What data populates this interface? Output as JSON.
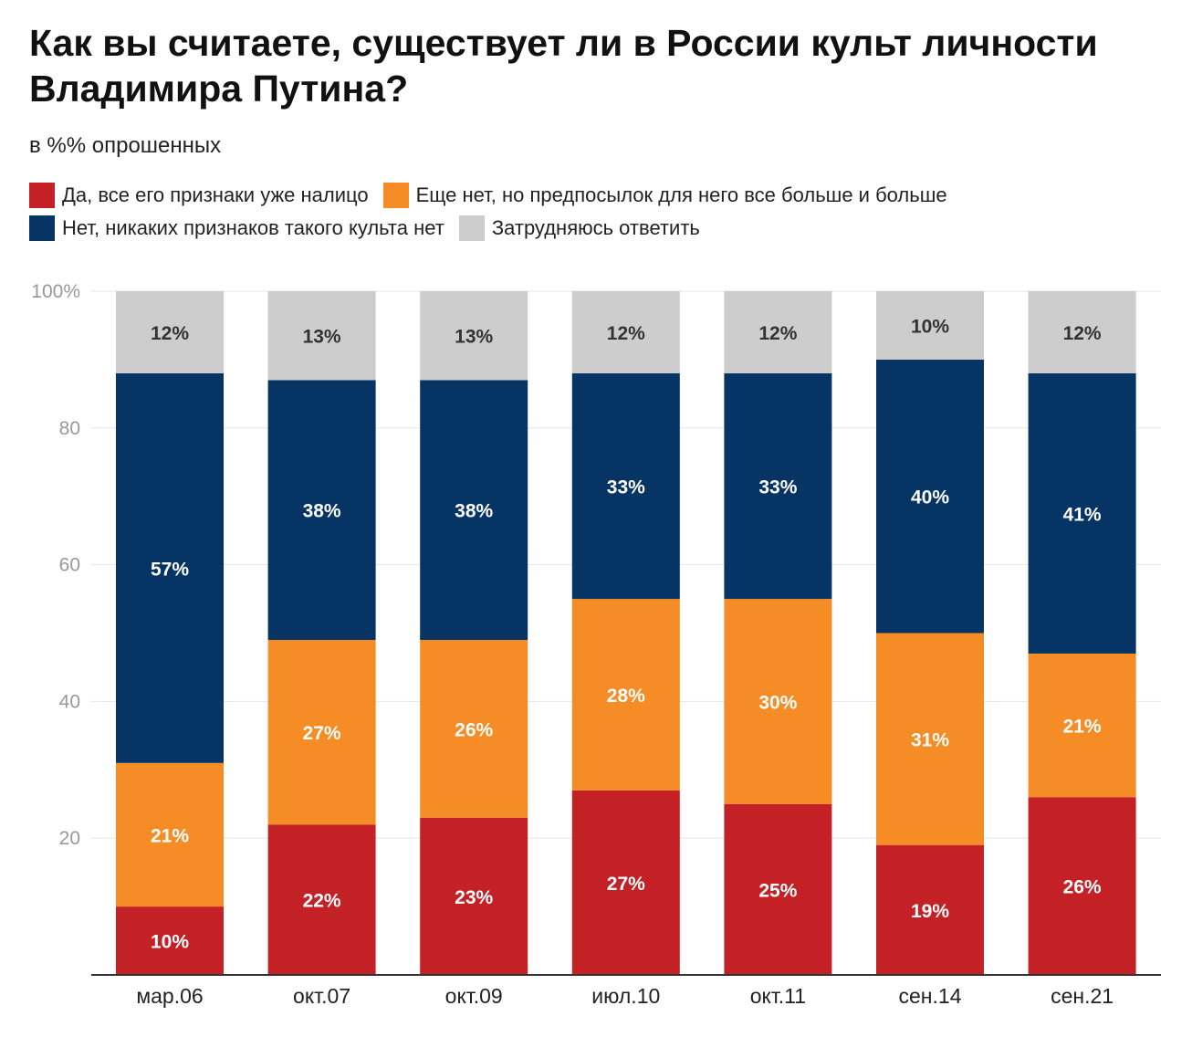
{
  "title": "Как вы считаете, существует ли в России культ личности Владимира Путина?",
  "subtitle": "в %% опрошенных",
  "legend": [
    {
      "label": "Да, все его признаки уже налицо",
      "color": "#c42127"
    },
    {
      "label": "Еще нет, но предпосылок для него все больше и больше",
      "color": "#f58c25"
    },
    {
      "label": "Нет, никаких признаков такого культа нет",
      "color": "#063465"
    },
    {
      "label": "Затрудняюсь ответить",
      "color": "#cdcdcd"
    }
  ],
  "chart_data": {
    "type": "bar",
    "stacked": true,
    "title": "Как вы считаете, существует ли в России культ личности Владимира Путина?",
    "subtitle": "в %% опрошенных",
    "xlabel": "",
    "ylabel": "",
    "ylim": [
      0,
      100
    ],
    "y_ticks": [
      "",
      "20",
      "40",
      "60",
      "80",
      "100%"
    ],
    "grid": true,
    "legend_position": "top",
    "categories": [
      "мар.06",
      "окт.07",
      "окт.09",
      "июл.10",
      "окт.11",
      "сен.14",
      "сен.21"
    ],
    "series": [
      {
        "name": "Да, все его признаки уже налицо",
        "color": "#c42127",
        "label_color": "#ffffff",
        "values": [
          10,
          22,
          23,
          27,
          25,
          19,
          26
        ],
        "labels": [
          "10%",
          "22%",
          "23%",
          "27%",
          "25%",
          "19%",
          "26%"
        ]
      },
      {
        "name": "Еще нет, но предпосылок для него все больше и больше",
        "color": "#f58c25",
        "label_color": "#ffffff",
        "values": [
          21,
          27,
          26,
          28,
          30,
          31,
          21
        ],
        "labels": [
          "21%",
          "27%",
          "26%",
          "28%",
          "30%",
          "31%",
          "21%"
        ]
      },
      {
        "name": "Нет, никаких признаков такого культа нет",
        "color": "#063465",
        "label_color": "#ffffff",
        "values": [
          57,
          38,
          38,
          33,
          33,
          40,
          41
        ],
        "labels": [
          "57%",
          "38%",
          "38%",
          "33%",
          "33%",
          "40%",
          "41%"
        ]
      },
      {
        "name": "Затрудняюсь ответить",
        "color": "#cdcdcd",
        "label_color": "#333333",
        "values": [
          12,
          13,
          13,
          12,
          12,
          10,
          12
        ],
        "labels": [
          "12%",
          "13%",
          "13%",
          "12%",
          "12%",
          "10%",
          "12%"
        ]
      }
    ]
  }
}
